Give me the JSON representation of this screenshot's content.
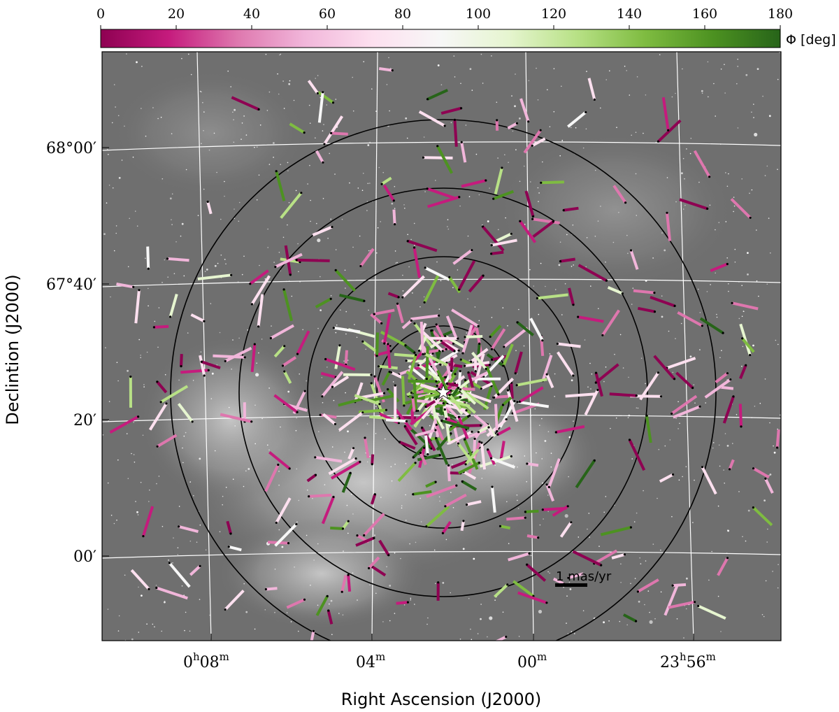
{
  "image": {
    "subject": "star-cluster-sky-image",
    "background_color": "#6f6f6f",
    "nebula_color": "#bdbdbd"
  },
  "colorbar": {
    "label": "Φ [deg]",
    "ticks": [
      "0",
      "20",
      "40",
      "60",
      "80",
      "100",
      "120",
      "140",
      "160",
      "180"
    ],
    "colors": [
      "#8e0152",
      "#c51b7d",
      "#de77ae",
      "#f1b6da",
      "#fde0ef",
      "#f7f7f7",
      "#e6f5d0",
      "#b8e186",
      "#7fbc41",
      "#4d9221",
      "#276419"
    ]
  },
  "axes": {
    "xlabel": "Right Ascension (J2000)",
    "ylabel": "Declintion (J2000)",
    "x_ticks": [
      {
        "main": "0",
        "sup1": "h",
        "mid": "08",
        "sup2": "m"
      },
      {
        "main": "04",
        "sup1": "",
        "mid": "",
        "sup2": "m"
      },
      {
        "main": "00",
        "sup1": "",
        "mid": "",
        "sup2": "m"
      },
      {
        "main": "23",
        "sup1": "h",
        "mid": "56",
        "sup2": "m"
      }
    ],
    "y_ticks": [
      {
        "main": "68°00",
        "prime": "′"
      },
      {
        "main": "67°40",
        "prime": "′"
      },
      {
        "main": "20",
        "prime": "′"
      },
      {
        "main": "00",
        "prime": "′"
      }
    ]
  },
  "overlay": {
    "circle_color": "#000000",
    "grid_color": "#ffffff",
    "center_marker": "star-icon"
  },
  "scale_bar": {
    "label": "1 mas/yr"
  }
}
